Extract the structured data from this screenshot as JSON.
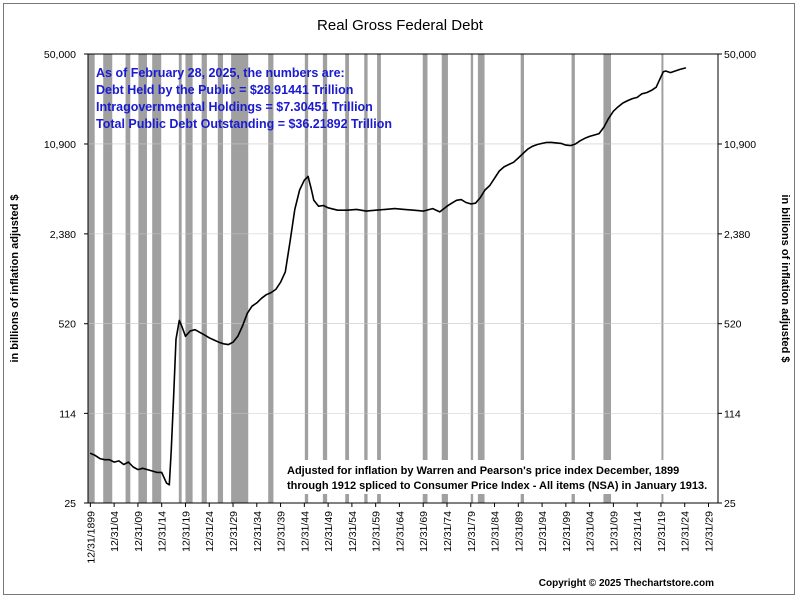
{
  "chart_data": {
    "type": "line",
    "title": "Real Gross Federal Debt",
    "ylabel": "in billions of inflation adjusted $",
    "y_scale": "log",
    "ylim": [
      25,
      50000
    ],
    "y_ticks": [
      25,
      114,
      520,
      2380,
      10900,
      50000
    ],
    "y_tick_labels": [
      "25",
      "114",
      "520",
      "2,380",
      "10,900",
      "50,000"
    ],
    "xlim": [
      "1899-12-31",
      "2031-12-31"
    ],
    "x_tick_labels": [
      "12/31/1899",
      "12/31/04",
      "12/31/09",
      "12/31/14",
      "12/31/19",
      "12/31/24",
      "12/31/29",
      "12/31/34",
      "12/31/39",
      "12/31/44",
      "12/31/49",
      "12/31/54",
      "12/31/59",
      "12/31/64",
      "12/31/69",
      "12/31/74",
      "12/31/79",
      "12/31/84",
      "12/31/89",
      "12/31/94",
      "12/31/99",
      "12/31/04",
      "12/31/09",
      "12/31/14",
      "12/31/19",
      "12/31/24",
      "12/31/29"
    ],
    "recession_shading": "gray bars",
    "recessions": [
      [
        1899.5,
        1900.9
      ],
      [
        1902.7,
        1904.6
      ],
      [
        1907.4,
        1908.4
      ],
      [
        1910.1,
        1911.9
      ],
      [
        1913.0,
        1914.9
      ],
      [
        1918.6,
        1919.2
      ],
      [
        1920.0,
        1921.5
      ],
      [
        1923.4,
        1924.5
      ],
      [
        1926.8,
        1927.9
      ],
      [
        1929.6,
        1933.2
      ],
      [
        1937.4,
        1938.5
      ],
      [
        1945.1,
        1945.8
      ],
      [
        1948.9,
        1949.8
      ],
      [
        1953.6,
        1954.4
      ],
      [
        1957.6,
        1958.3
      ],
      [
        1960.3,
        1961.1
      ],
      [
        1969.9,
        1970.9
      ],
      [
        1973.9,
        1975.2
      ],
      [
        1980.0,
        1980.5
      ],
      [
        1981.5,
        1982.9
      ],
      [
        1990.5,
        1991.2
      ],
      [
        2001.2,
        2001.9
      ],
      [
        2007.9,
        2009.5
      ],
      [
        2020.1,
        2020.4
      ]
    ],
    "series": [
      {
        "points": [
          [
            1900.0,
            58
          ],
          [
            1901.0,
            56
          ],
          [
            1902.0,
            53
          ],
          [
            1903.0,
            52
          ],
          [
            1904.0,
            52
          ],
          [
            1905.0,
            50
          ],
          [
            1906.0,
            51
          ],
          [
            1907.0,
            48
          ],
          [
            1908.0,
            50
          ],
          [
            1909.0,
            46
          ],
          [
            1910.0,
            44
          ],
          [
            1911.0,
            45
          ],
          [
            1912.0,
            44
          ],
          [
            1913.0,
            43
          ],
          [
            1914.0,
            42
          ],
          [
            1915.0,
            42
          ],
          [
            1916.0,
            35
          ],
          [
            1916.6,
            34
          ],
          [
            1917.0,
            60
          ],
          [
            1917.5,
            150
          ],
          [
            1918.0,
            400
          ],
          [
            1918.7,
            550
          ],
          [
            1919.2,
            500
          ],
          [
            1920.0,
            420
          ],
          [
            1921.0,
            460
          ],
          [
            1922.0,
            470
          ],
          [
            1923.0,
            450
          ],
          [
            1924.0,
            430
          ],
          [
            1925.0,
            410
          ],
          [
            1926.0,
            395
          ],
          [
            1927.0,
            380
          ],
          [
            1928.0,
            370
          ],
          [
            1929.0,
            365
          ],
          [
            1930.0,
            380
          ],
          [
            1931.0,
            420
          ],
          [
            1932.0,
            500
          ],
          [
            1933.0,
            620
          ],
          [
            1934.0,
            700
          ],
          [
            1935.0,
            740
          ],
          [
            1936.0,
            800
          ],
          [
            1937.0,
            850
          ],
          [
            1938.0,
            880
          ],
          [
            1939.0,
            930
          ],
          [
            1940.0,
            1050
          ],
          [
            1941.0,
            1250
          ],
          [
            1942.0,
            2100
          ],
          [
            1943.0,
            3600
          ],
          [
            1944.0,
            5000
          ],
          [
            1945.0,
            5900
          ],
          [
            1945.8,
            6300
          ],
          [
            1946.5,
            5000
          ],
          [
            1947.0,
            4200
          ],
          [
            1948.0,
            3800
          ],
          [
            1949.0,
            3850
          ],
          [
            1950.0,
            3700
          ],
          [
            1952.0,
            3550
          ],
          [
            1954.0,
            3550
          ],
          [
            1956.0,
            3600
          ],
          [
            1958.0,
            3500
          ],
          [
            1960.0,
            3550
          ],
          [
            1962.0,
            3600
          ],
          [
            1964.0,
            3650
          ],
          [
            1966.0,
            3600
          ],
          [
            1968.0,
            3550
          ],
          [
            1970.0,
            3500
          ],
          [
            1972.0,
            3650
          ],
          [
            1973.5,
            3450
          ],
          [
            1975.0,
            3800
          ],
          [
            1976.0,
            4000
          ],
          [
            1977.0,
            4200
          ],
          [
            1978.0,
            4250
          ],
          [
            1979.0,
            4050
          ],
          [
            1980.0,
            3950
          ],
          [
            1981.0,
            4000
          ],
          [
            1982.0,
            4400
          ],
          [
            1983.0,
            5000
          ],
          [
            1984.0,
            5400
          ],
          [
            1985.0,
            6100
          ],
          [
            1986.0,
            6900
          ],
          [
            1987.0,
            7400
          ],
          [
            1988.0,
            7700
          ],
          [
            1989.0,
            8000
          ],
          [
            1990.0,
            8600
          ],
          [
            1991.0,
            9300
          ],
          [
            1992.0,
            10000
          ],
          [
            1993.0,
            10500
          ],
          [
            1994.0,
            10800
          ],
          [
            1995.0,
            11000
          ],
          [
            1996.0,
            11200
          ],
          [
            1997.0,
            11200
          ],
          [
            1998.0,
            11100
          ],
          [
            1999.0,
            11000
          ],
          [
            2000.0,
            10700
          ],
          [
            2001.0,
            10600
          ],
          [
            2002.0,
            10900
          ],
          [
            2003.0,
            11500
          ],
          [
            2004.0,
            12000
          ],
          [
            2005.0,
            12400
          ],
          [
            2006.0,
            12700
          ],
          [
            2007.0,
            13000
          ],
          [
            2008.0,
            14500
          ],
          [
            2009.0,
            16800
          ],
          [
            2010.0,
            19000
          ],
          [
            2011.0,
            20500
          ],
          [
            2012.0,
            21800
          ],
          [
            2013.0,
            22700
          ],
          [
            2014.0,
            23500
          ],
          [
            2015.0,
            24000
          ],
          [
            2016.0,
            25500
          ],
          [
            2017.0,
            26000
          ],
          [
            2018.0,
            27000
          ],
          [
            2019.0,
            28500
          ],
          [
            2020.0,
            34000
          ],
          [
            2020.5,
            37000
          ],
          [
            2021.0,
            37500
          ],
          [
            2022.0,
            36500
          ],
          [
            2023.0,
            37500
          ],
          [
            2024.0,
            38500
          ],
          [
            2025.2,
            39500
          ]
        ]
      }
    ]
  },
  "info_box": {
    "line1": "As of February 28, 2025, the numbers are:",
    "line2": "Debt Held by the Public = $28.91441 Trillion",
    "line3": "Intragovernmental Holdings = $7.30451 Trillion",
    "line4": "Total Public Debt Outstanding = $36.21892 Trillion",
    "color": "#1a1ad0"
  },
  "note": {
    "line1": "Adjusted for inflation by Warren and Pearson's price index December, 1899",
    "line2": "through 1912 spliced to Consumer Price Index - All items (NSA) in January 1913."
  },
  "copyright": "Copyright © 2025 Thechartstore.com",
  "colors": {
    "line": "#000000",
    "recession": "#a0a0a0"
  }
}
